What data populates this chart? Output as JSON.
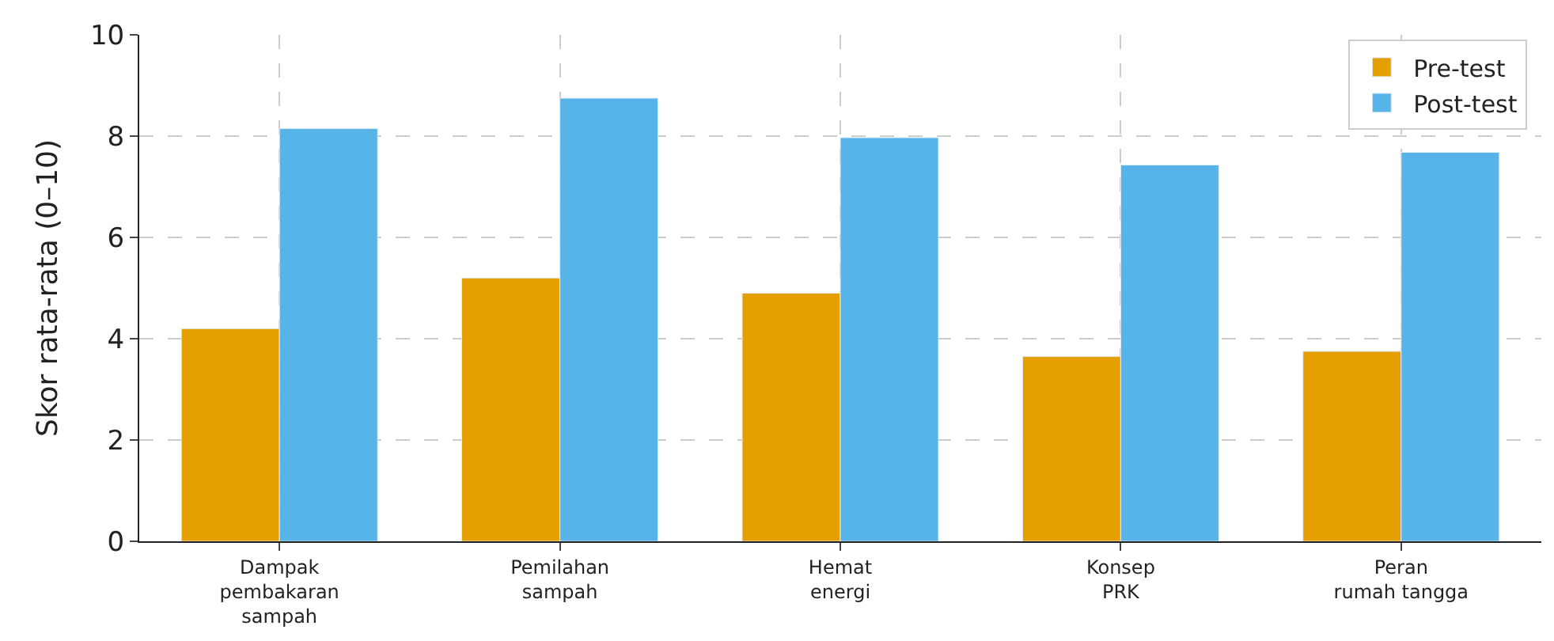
{
  "chart_data": {
    "type": "bar",
    "ylabel": "Skor rata-rata (0–10)",
    "categories": [
      "Dampak\npembakaran\nsampah",
      "Pemilahan\nsampah",
      "Hemat\nenergi",
      "Konsep\nPRK",
      "Peran\nrumah tangga"
    ],
    "series": [
      {
        "name": "Pre-test",
        "color": "#e69f00",
        "values": [
          4.2,
          5.2,
          4.9,
          3.65,
          3.75
        ]
      },
      {
        "name": "Post-test",
        "color": "#56b4e9",
        "values": [
          8.15,
          8.75,
          7.97,
          7.43,
          7.68
        ]
      }
    ],
    "ylim": [
      0,
      10
    ],
    "yticks": [
      0,
      2,
      4,
      6,
      8,
      10
    ],
    "grid": true,
    "legend": "top right"
  }
}
